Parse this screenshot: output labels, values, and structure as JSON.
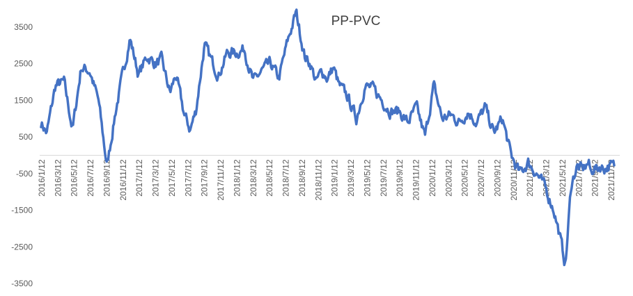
{
  "chart_data": {
    "type": "line",
    "title": "PP-PVC",
    "xlabel": "",
    "ylabel": "",
    "ylim": [
      -3500,
      4000
    ],
    "y_ticks": [
      3500,
      2500,
      1500,
      500,
      -500,
      -1500,
      -2500,
      -3500
    ],
    "grid": false,
    "legend": "none",
    "line_color": "#4472C4",
    "x_tick_labels": [
      "2016/1/12",
      "2016/3/12",
      "2016/5/12",
      "2016/7/12",
      "2016/9/12",
      "2016/11/12",
      "2017/1/12",
      "2017/3/12",
      "2017/5/12",
      "2017/7/12",
      "2017/9/12",
      "2017/11/12",
      "2018/1/12",
      "2018/3/12",
      "2018/5/12",
      "2018/7/12",
      "2018/9/12",
      "2018/11/12",
      "2019/1/12",
      "2019/3/12",
      "2019/5/12",
      "2019/7/12",
      "2019/9/12",
      "2019/11/12",
      "2020/1/12",
      "2020/3/12",
      "2020/5/12",
      "2020/7/12",
      "2020/9/12",
      "2020/11/12",
      "2021/1/12",
      "2021/3/12",
      "2021/5/12",
      "2021/7/12",
      "2021/9/12",
      "2021/11/12"
    ],
    "series": [
      {
        "name": "PP-PVC",
        "t": [
          0,
          0.01,
          0.025,
          0.04,
          0.055,
          0.07,
          0.085,
          0.1,
          0.115,
          0.13,
          0.14,
          0.155,
          0.17,
          0.185,
          0.2,
          0.21,
          0.225,
          0.235,
          0.25,
          0.26,
          0.27,
          0.285,
          0.3,
          0.31,
          0.325,
          0.34,
          0.355,
          0.37,
          0.385,
          0.4,
          0.415,
          0.43,
          0.445,
          0.46,
          0.47,
          0.48,
          0.49,
          0.5,
          0.51,
          0.52,
          0.535,
          0.55,
          0.565,
          0.58,
          0.595,
          0.61,
          0.625,
          0.64,
          0.655,
          0.67,
          0.685,
          0.7,
          0.715,
          0.73,
          0.745,
          0.76,
          0.775,
          0.79,
          0.805,
          0.82,
          0.835,
          0.85,
          0.865,
          0.88,
          0.895,
          0.905,
          0.915,
          0.925,
          0.935,
          0.945,
          0.955,
          0.96,
          0.965,
          0.97,
          0.975,
          0.982,
          0.99,
          1.0
        ],
        "values": [
          900,
          600,
          1900,
          2000,
          700,
          2400,
          2300,
          1500,
          -300,
          1200,
          2000,
          3200,
          2200,
          2700,
          2500,
          2600,
          1700,
          2200,
          1100,
          700,
          1200,
          3000,
          2500,
          2200,
          2800,
          2800,
          2900,
          2000,
          2300,
          2500,
          2100,
          3100,
          3900,
          2700,
          2500,
          2000,
          2300,
          2100,
          2400,
          1900,
          1600,
          1000,
          1900,
          1800,
          1500,
          1200,
          1200,
          900,
          1300,
          500,
          1900,
          1000,
          1100,
          900,
          1200,
          900,
          1300,
          600,
          1000,
          0,
          -500,
          -200,
          -500,
          -900,
          -1500,
          -2200,
          -3000,
          -800,
          -300,
          -400,
          -200,
          -500,
          -300,
          -400,
          -300,
          -350,
          -300,
          -300
        ]
      }
    ]
  }
}
